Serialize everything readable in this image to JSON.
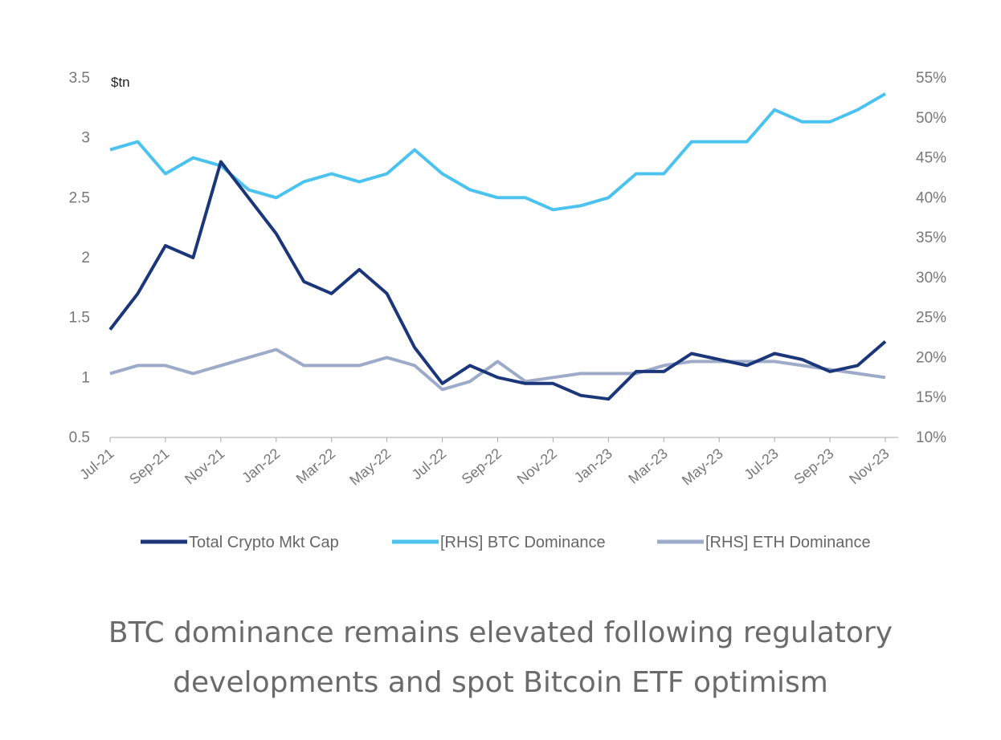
{
  "chart_data": {
    "type": "line",
    "y_unit_label": "$tn",
    "categories": [
      "Jul-21",
      null,
      "Sep-21",
      null,
      "Nov-21",
      null,
      "Jan-22",
      null,
      "Mar-22",
      null,
      "May-22",
      null,
      "Jul-22",
      null,
      "Sep-22",
      null,
      "Nov-22",
      null,
      "Jan-23",
      null,
      "Mar-23",
      null,
      "May-23",
      null,
      "Jul-23",
      null,
      "Sep-23",
      null,
      "Nov-23"
    ],
    "series": [
      {
        "name": "Total Crypto Mkt Cap",
        "color": "#1b3679",
        "axis": "y",
        "values": [
          1.4,
          1.7,
          2.1,
          2.0,
          2.8,
          2.5,
          2.2,
          1.8,
          1.7,
          1.9,
          1.7,
          1.25,
          0.95,
          1.1,
          1.0,
          0.95,
          0.95,
          0.85,
          0.82,
          1.05,
          1.05,
          1.2,
          1.15,
          1.1,
          1.2,
          1.15,
          1.05,
          1.1,
          1.3
        ]
      },
      {
        "name": "[RHS] BTC Dominance",
        "color": "#4cc3ef",
        "axis": "y2",
        "values": [
          46,
          47,
          43,
          45,
          44,
          41,
          40,
          42,
          43,
          42,
          43,
          46,
          43,
          41,
          40,
          40,
          38.5,
          39,
          40,
          43,
          43,
          47,
          47,
          47,
          51,
          49.5,
          49.5,
          51,
          53
        ]
      },
      {
        "name": "[RHS] ETH Dominance",
        "color": "#9dabc9",
        "axis": "y2",
        "values": [
          18,
          19,
          19,
          18,
          19,
          20,
          21,
          19,
          19,
          19,
          20,
          19,
          16,
          17,
          19.5,
          17,
          17.5,
          18,
          18,
          18,
          19,
          19.5,
          19.5,
          19.5,
          19.5,
          19,
          18.5,
          18,
          17.5
        ]
      }
    ],
    "ylim": [
      0.5,
      3.5
    ],
    "yticks": [
      0.5,
      1.0,
      1.5,
      2.0,
      2.5,
      3.0,
      3.5
    ],
    "y2lim": [
      10,
      55
    ],
    "y2ticks": [
      {
        "value": 10,
        "label": "10%"
      },
      {
        "value": 15,
        "label": "15%"
      },
      {
        "value": 20,
        "label": "20%"
      },
      {
        "value": 25,
        "label": "25%"
      },
      {
        "value": 30,
        "label": "30%"
      },
      {
        "value": 35,
        "label": "35%"
      },
      {
        "value": 40,
        "label": "40%"
      },
      {
        "value": 45,
        "label": "45%"
      },
      {
        "value": 50,
        "label": "50%"
      },
      {
        "value": 55,
        "label": "55%"
      }
    ],
    "legend": "bottom",
    "caption": "BTC dominance remains elevated following regulatory developments and spot Bitcoin ETF optimism"
  }
}
